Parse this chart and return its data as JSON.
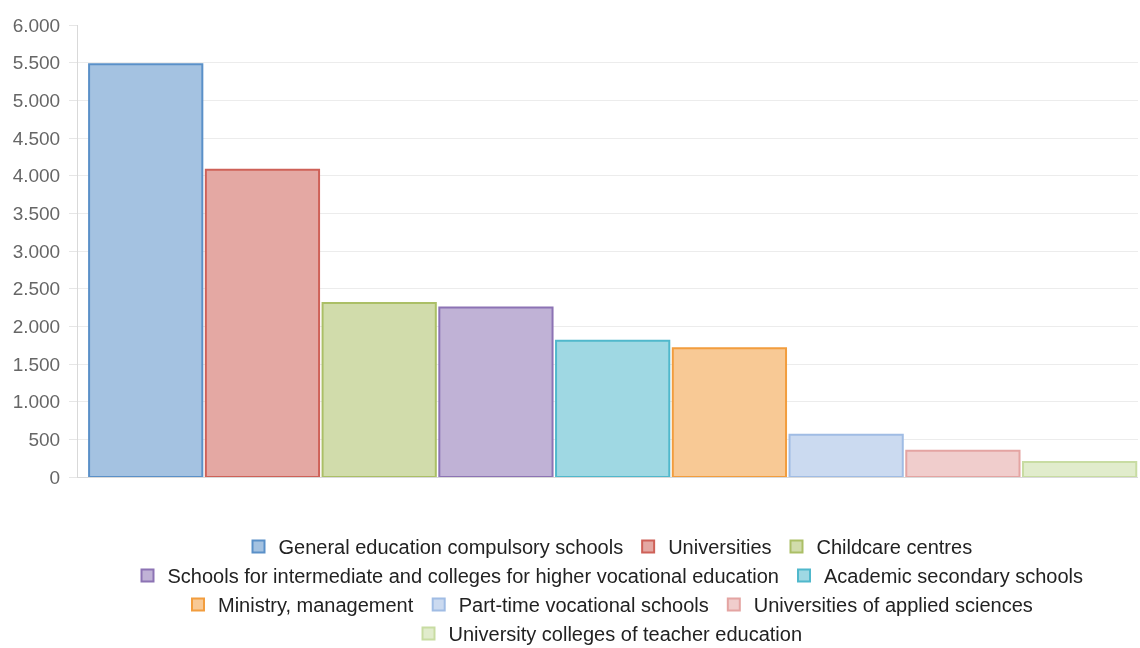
{
  "chart_data": {
    "type": "bar",
    "categories": [
      null,
      null,
      null,
      null,
      null,
      null,
      null,
      null,
      null
    ],
    "series": [
      {
        "name": "General education compulsory schools",
        "color": "#a4c2e1",
        "values": [
          5480,
          null,
          null,
          null,
          null,
          null,
          null,
          null,
          null
        ]
      },
      {
        "name": "Universities",
        "color": "#e4a8a3",
        "values": [
          null,
          4080,
          null,
          null,
          null,
          null,
          null,
          null,
          null
        ]
      },
      {
        "name": "Childcare centres",
        "color": "#d1dcab",
        "values": [
          null,
          null,
          2310,
          null,
          null,
          null,
          null,
          null,
          null
        ]
      },
      {
        "name": "Schools for intermediate and colleges for higher vocational education",
        "color": "#c0b2d6",
        "values": [
          null,
          null,
          null,
          2250,
          null,
          null,
          null,
          null,
          null
        ]
      },
      {
        "name": "Academic secondary schools",
        "color": "#9fd8e3",
        "values": [
          null,
          null,
          null,
          null,
          1810,
          null,
          null,
          null,
          null
        ]
      },
      {
        "name": "Ministry, management",
        "color": "#f8c995",
        "values": [
          null,
          null,
          null,
          null,
          null,
          1710,
          null,
          null,
          null
        ]
      },
      {
        "name": "Part-time vocational schools",
        "color": "#cbdaf0",
        "values": [
          null,
          null,
          null,
          null,
          null,
          null,
          560,
          null,
          null
        ]
      },
      {
        "name": "Universities of applied sciences",
        "color": "#f0cdcc",
        "values": [
          null,
          null,
          null,
          null,
          null,
          null,
          null,
          350,
          null
        ]
      },
      {
        "name": "University colleges of teacher education",
        "color": "#e1eccc",
        "values": [
          null,
          null,
          null,
          null,
          null,
          null,
          null,
          null,
          200
        ]
      }
    ],
    "stacked": true,
    "ylim": [
      0,
      6000
    ],
    "yticks": [
      0,
      500,
      {
        "value": 1000,
        "label": "1.000"
      },
      {
        "value": 1500,
        "label": "1.500"
      },
      {
        "value": 2000,
        "label": "2.000"
      },
      {
        "value": 2500,
        "label": "2.500"
      },
      {
        "value": 3000,
        "label": "3.000"
      },
      {
        "value": 3500,
        "label": "3.500"
      },
      {
        "value": 4000,
        "label": "4.000"
      },
      {
        "value": 4500,
        "label": "4.500"
      },
      {
        "value": 5000,
        "label": "5.000"
      },
      {
        "value": 5500,
        "label": "5.500"
      },
      {
        "value": 6000,
        "label": "6.000"
      }
    ],
    "grid": "y",
    "legend": "bottom",
    "tick_labels": "y"
  }
}
